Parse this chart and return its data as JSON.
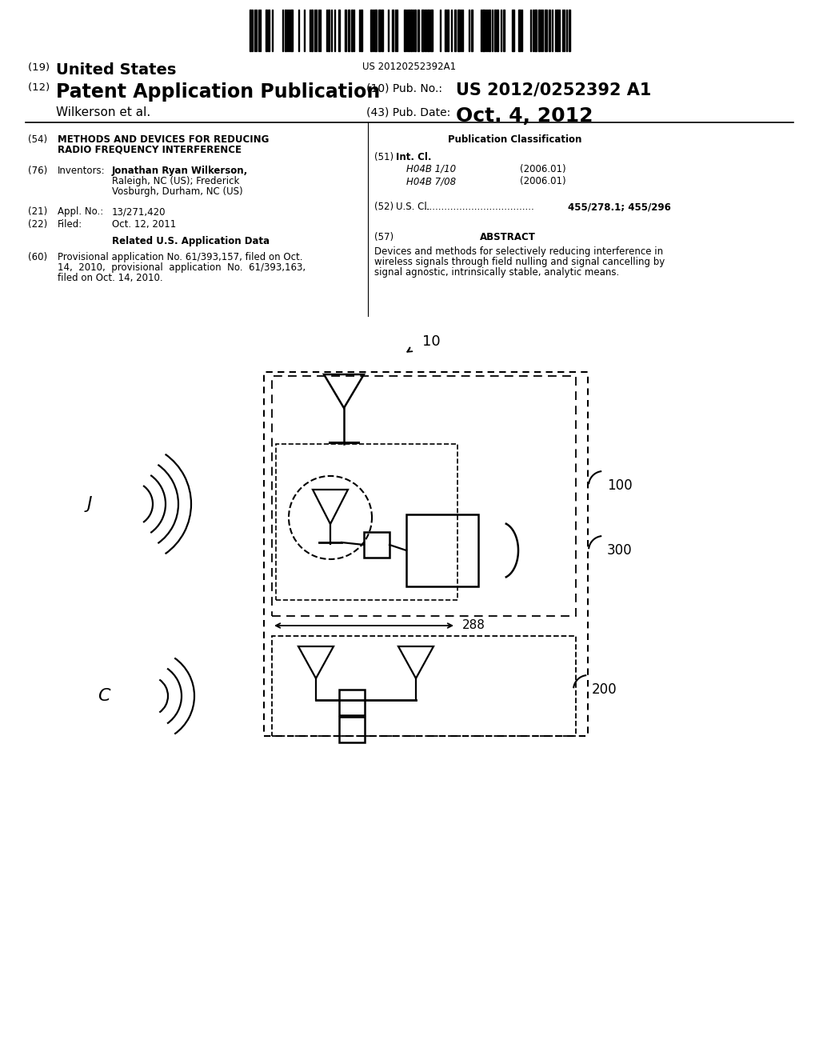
{
  "bg_color": "#ffffff",
  "barcode_text": "US 20120252392A1",
  "title_19_prefix": "(19) ",
  "title_19_main": "United States",
  "title_12_prefix": "(12) ",
  "title_12_main": "Patent Application Publication",
  "inventor_line": "Wilkerson et al.",
  "pub_no_label": "(10) Pub. No.: ",
  "pub_no_value": "US 2012/0252392 A1",
  "pub_date_label": "(43) Pub. Date:",
  "pub_date_value": "Oct. 4, 2012",
  "section_54_label": "(54)",
  "section_54_title_line1": "METHODS AND DEVICES FOR REDUCING",
  "section_54_title_line2": "RADIO FREQUENCY INTERFERENCE",
  "section_76_label": "(76)",
  "section_76_title": "Inventors:",
  "section_21_label": "(21)",
  "section_21_title": "Appl. No.:",
  "section_21_value": "13/271,420",
  "section_22_label": "(22)",
  "section_22_title": "Filed:",
  "section_22_value": "Oct. 12, 2011",
  "related_title": "Related U.S. Application Data",
  "section_60_label": "(60)",
  "section_60_line1": "Provisional application No. 61/393,157, filed on Oct.",
  "section_60_line2": "14,  2010,  provisional  application  No.  61/393,163,",
  "section_60_line3": "filed on Oct. 14, 2010.",
  "pub_class_title": "Publication Classification",
  "section_51_label": "(51)",
  "section_51_title": "Int. Cl.",
  "section_51_class1": "H04B 1/10",
  "section_51_year1": "(2006.01)",
  "section_51_class2": "H04B 7/08",
  "section_51_year2": "(2006.01)",
  "section_52_label": "(52)",
  "section_52_title": "U.S. Cl.",
  "section_52_dots": ".....................................",
  "section_52_value": "455/278.1; 455/296",
  "section_57_label": "(57)",
  "section_57_title": "ABSTRACT",
  "abstract_line1": "Devices and methods for selectively reducing interference in",
  "abstract_line2": "wireless signals through field nulling and signal cancelling by",
  "abstract_line3": "signal agnostic, intrinsically stable, analytic means.",
  "diagram_label_10": "10",
  "diagram_label_J": "J",
  "diagram_label_C": "C",
  "diagram_label_100": "100",
  "diagram_label_200": "200",
  "diagram_label_288": "288",
  "diagram_label_300": "300"
}
